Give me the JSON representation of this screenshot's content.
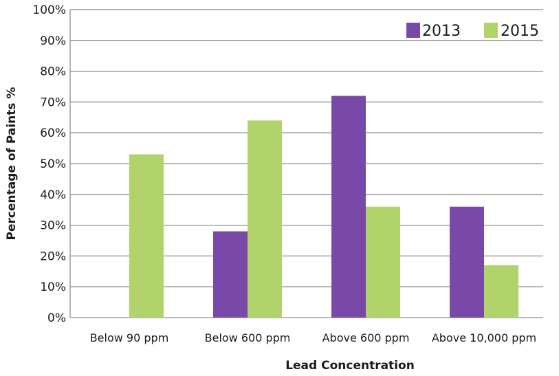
{
  "chart_data": {
    "type": "bar",
    "categories": [
      "Below 90 ppm",
      "Below 600 ppm",
      "Above 600 ppm",
      "Above 10,000 ppm"
    ],
    "series": [
      {
        "name": "2013",
        "color": "#7849a8",
        "values": [
          0,
          28,
          72,
          36
        ]
      },
      {
        "name": "2015",
        "color": "#b1d36c",
        "values": [
          53,
          64,
          36,
          17
        ]
      }
    ],
    "xlabel": "Lead Concentration",
    "ylabel": "Percentage of Paints %",
    "ylim": [
      0,
      100
    ],
    "yticks": [
      "0%",
      "10%",
      "20%",
      "30%",
      "40%",
      "50%",
      "60%",
      "70%",
      "80%",
      "90%",
      "100%"
    ],
    "grid": true,
    "legend_position": "top-right",
    "gridline_color": "#8c8c8c"
  }
}
